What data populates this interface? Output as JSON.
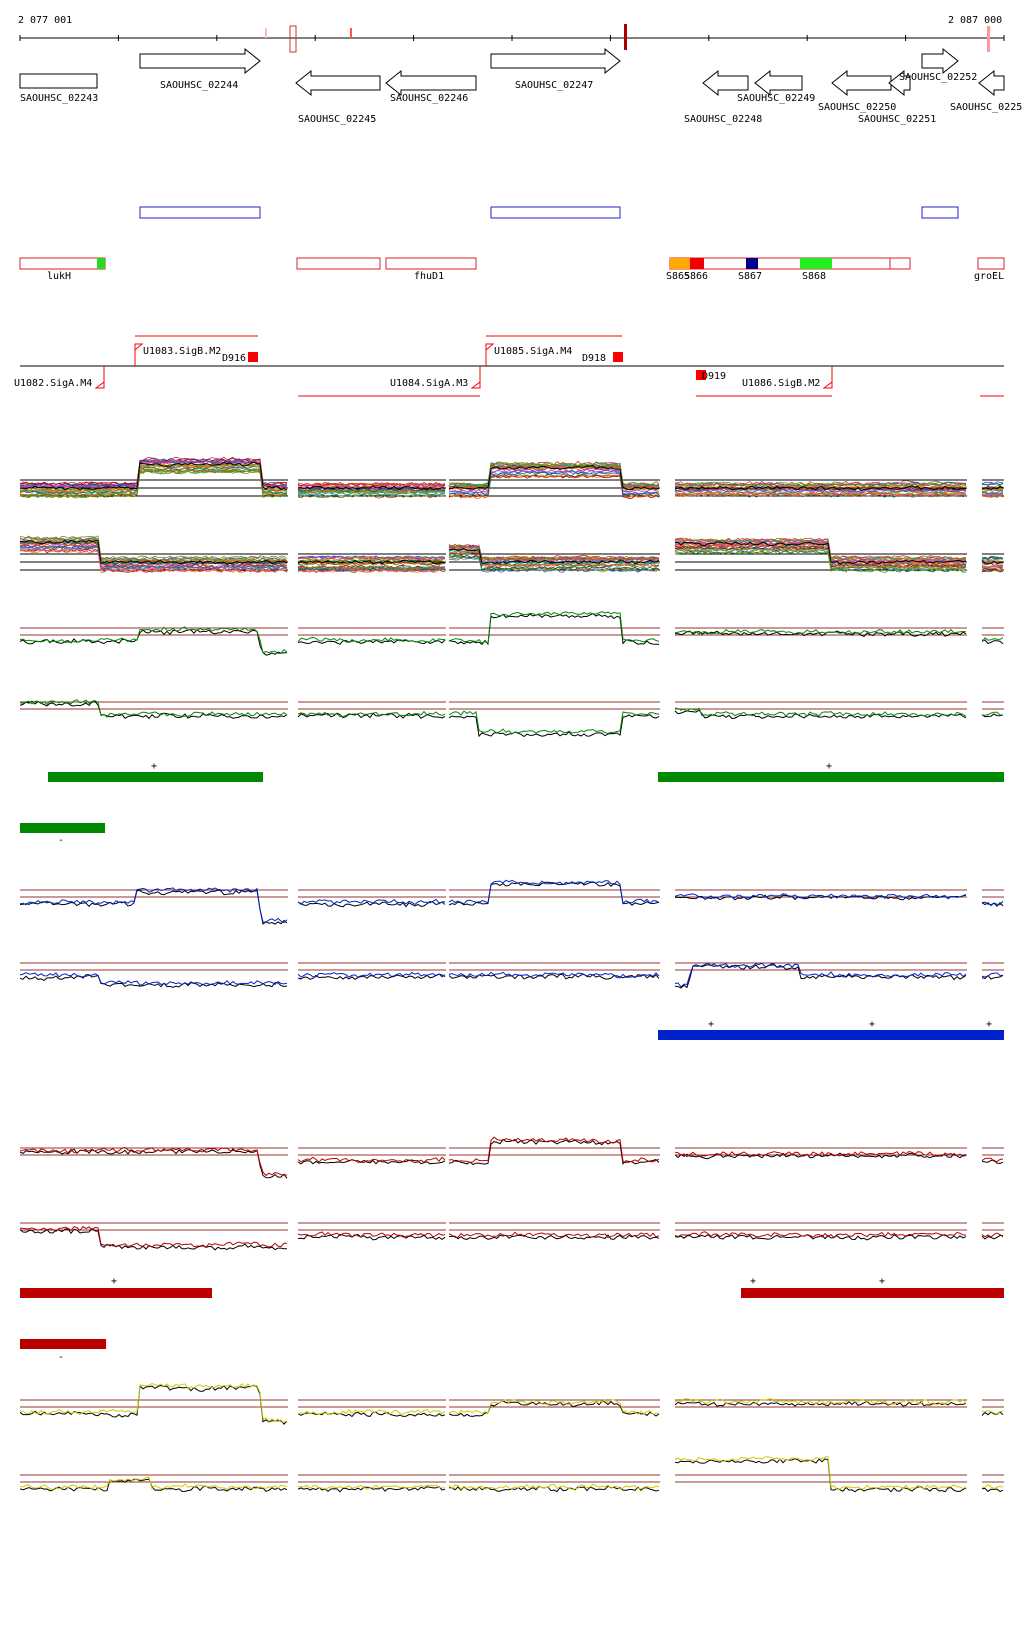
{
  "coords": {
    "start": "2 077 001",
    "end": "2 087 000"
  },
  "genes": [
    {
      "id": "SAOUHSC_02243",
      "strand": "+"
    },
    {
      "id": "SAOUHSC_02244",
      "strand": "+"
    },
    {
      "id": "SAOUHSC_02245",
      "strand": "-"
    },
    {
      "id": "SAOUHSC_02246",
      "strand": "-"
    },
    {
      "id": "SAOUHSC_02247",
      "strand": "+"
    },
    {
      "id": "SAOUHSC_02248",
      "strand": "-"
    },
    {
      "id": "SAOUHSC_02249",
      "strand": "-"
    },
    {
      "id": "SAOUHSC_02250",
      "strand": "-"
    },
    {
      "id": "SAOUHSC_02251",
      "strand": "-"
    },
    {
      "id": "SAOUHSC_02252",
      "strand": "+"
    },
    {
      "id": "SAOUHSC_0225",
      "strand": "-"
    }
  ],
  "features": [
    {
      "label": "lukH"
    },
    {
      "label": "fhuD1"
    },
    {
      "label": "S865"
    },
    {
      "label": "S866"
    },
    {
      "label": "S867"
    },
    {
      "label": "S868"
    },
    {
      "label": "groEL"
    }
  ],
  "promoters": [
    {
      "label": "U1082.SigA.M4"
    },
    {
      "label": "U1083.SigB.M2"
    },
    {
      "label": "D916"
    },
    {
      "label": "U1084.SigA.M3"
    },
    {
      "label": "U1085.SigA.M4"
    },
    {
      "label": "D918"
    },
    {
      "label": "D919"
    },
    {
      "label": "U1086.SigB.M2"
    }
  ],
  "strand_marks": {
    "plus": "+",
    "minus": "-"
  },
  "colors": {
    "green": "#008800",
    "blue": "#0022cc",
    "red": "#bb0000",
    "yellow": "#cccc00",
    "refline": "#993333",
    "promoter": "#ff0000",
    "feature_box": "#dd2222",
    "gene_outline": "#000000",
    "blue_box": "#2222cc"
  }
}
